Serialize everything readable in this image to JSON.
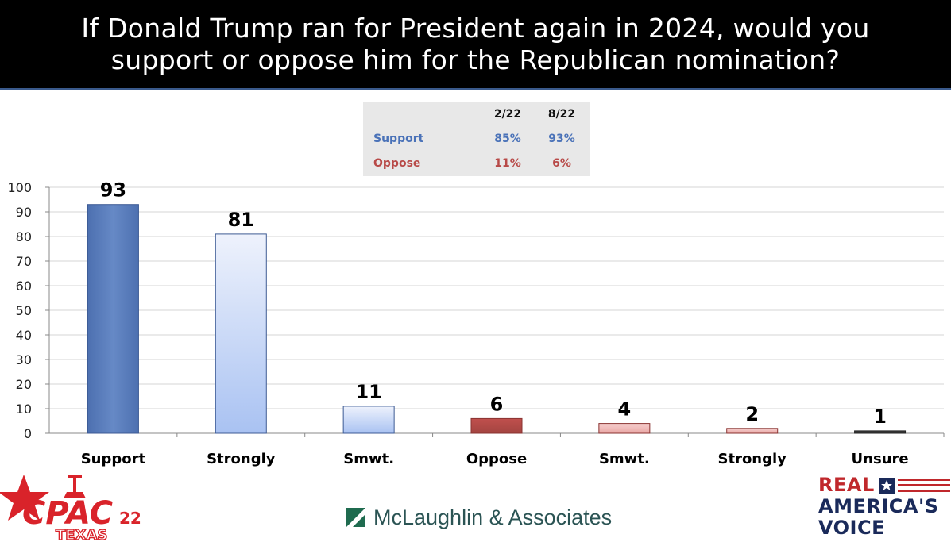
{
  "header": {
    "title_line1": "If Donald Trump ran for President again in 2024, would you",
    "title_line2": "support or oppose him for the Republican nomination?"
  },
  "summary_table": {
    "col_a": "2/22",
    "col_b": "8/22",
    "rows": [
      {
        "label": "Support",
        "a": "85%",
        "b": "93%",
        "color": "#4a72b8"
      },
      {
        "label": "Oppose",
        "a": "11%",
        "b": "6%",
        "color": "#b84a48"
      }
    ]
  },
  "chart_data": {
    "type": "bar",
    "categories": [
      "Support",
      "Strongly",
      "Smwt.",
      "Oppose",
      "Smwt.",
      "Strongly",
      "Unsure"
    ],
    "values": [
      93,
      81,
      11,
      6,
      4,
      2,
      1
    ],
    "data_labels": [
      "93",
      "81",
      "11",
      "6",
      "4",
      "2",
      "1"
    ],
    "ylim": [
      0,
      100
    ],
    "yticks": [
      "0",
      "10",
      "20",
      "30",
      "40",
      "50",
      "60",
      "70",
      "80",
      "90",
      "100"
    ],
    "grid": true,
    "title": "",
    "xlabel": "",
    "ylabel": ""
  },
  "footer": {
    "pollster": "McLaughlin & Associates",
    "left_logo": "CPAC 22 TEXAS",
    "right_logo_lines": [
      "REAL",
      "AMERICA'S",
      "VOICE"
    ]
  },
  "colors": {
    "support": "#5b7fbd",
    "oppose": "#b5504c",
    "unsure": "#333333"
  }
}
